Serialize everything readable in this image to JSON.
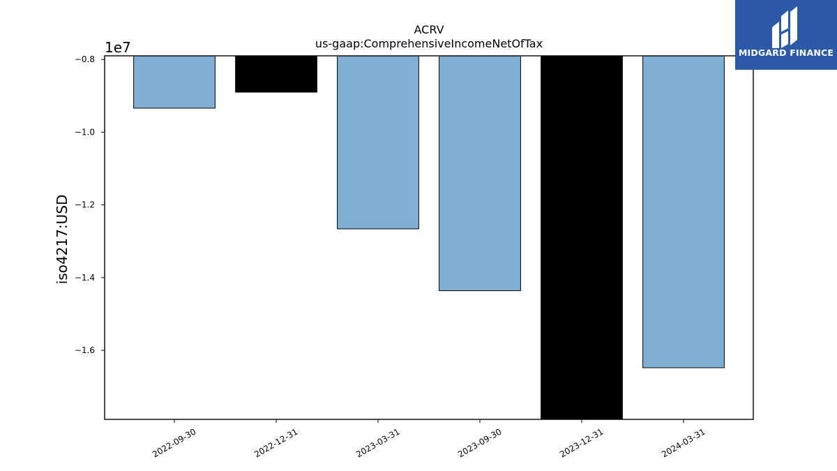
{
  "logo": {
    "text": "MIDGARD FINANCE"
  },
  "chart_data": {
    "type": "bar",
    "title": "ACRV",
    "subtitle": "us-gaap:ComprehensiveIncomeNetOfTax",
    "ylabel": "iso4217:USD",
    "xlabel": "",
    "y_offset_label": "1e7",
    "categories": [
      "2022-09-30",
      "2022-12-31",
      "2023-03-31",
      "2023-09-30",
      "2023-12-31",
      "2024-03-31"
    ],
    "values": [
      -9340000,
      -8900000,
      -12660000,
      -14360000,
      -17900000,
      -16480000
    ],
    "bar_colors": [
      "#7fb0d3",
      "#000000",
      "#7fb0d3",
      "#7fb0d3",
      "#000000",
      "#7fb0d3"
    ],
    "ylim": [
      -17900000,
      -7900000
    ],
    "yticks": [
      -8000000,
      -10000000,
      -12000000,
      -14000000,
      -16000000
    ],
    "ytick_labels": [
      "−0.8",
      "−1.0",
      "−1.2",
      "−1.4",
      "−1.6"
    ],
    "grid": false,
    "legend": "none"
  }
}
